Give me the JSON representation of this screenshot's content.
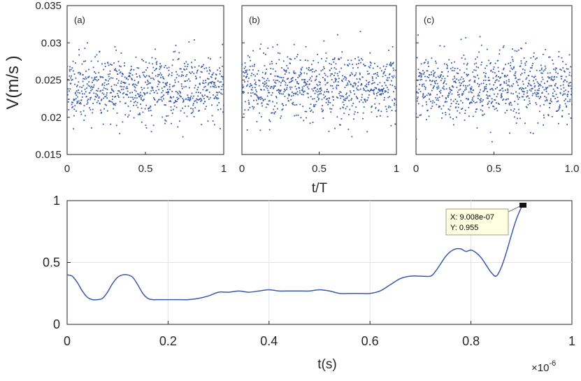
{
  "chart_data": [
    {
      "type": "scatter",
      "panel_label": "(a)",
      "ylabel": "V(m/s )",
      "ylim": [
        0.015,
        0.035
      ],
      "xlim": [
        0,
        1
      ],
      "xticks": [
        "0",
        "0.5",
        "1"
      ],
      "yticks": [
        "0.015",
        "0.02",
        "0.025",
        "0.03",
        "0.035"
      ],
      "points_count": 800,
      "mean": 0.024,
      "std": 0.0022,
      "color": "#3a5aa8"
    },
    {
      "type": "scatter",
      "panel_label": "(b)",
      "xlabel": "t/T",
      "ylim": [
        0.015,
        0.035
      ],
      "xlim": [
        0,
        1
      ],
      "xticks": [
        "0",
        "0.5",
        "1"
      ],
      "points_count": 800,
      "mean": 0.024,
      "std": 0.0022,
      "color": "#3a5aa8"
    },
    {
      "type": "scatter",
      "panel_label": "(c)",
      "ylim": [
        0.015,
        0.035
      ],
      "xlim": [
        0,
        1
      ],
      "xticks": [
        "0",
        "0.5",
        "1.0"
      ],
      "points_count": 800,
      "mean": 0.024,
      "std": 0.0022,
      "color": "#3a5aa8"
    },
    {
      "type": "line",
      "xlabel": "t(s)",
      "x_exponent": "×10",
      "x_exponent_power": "-6",
      "xlim": [
        0,
        1
      ],
      "ylim": [
        0,
        1
      ],
      "grid": true,
      "xticks": [
        "0",
        "0.2",
        "0.4",
        "0.6",
        "0.8",
        "1"
      ],
      "yticks": [
        "0",
        "0.5",
        "1"
      ],
      "color": "#3a5aa8",
      "x": [
        0,
        0.01,
        0.02,
        0.03,
        0.04,
        0.05,
        0.06,
        0.07,
        0.08,
        0.09,
        0.1,
        0.11,
        0.12,
        0.13,
        0.14,
        0.15,
        0.16,
        0.17,
        0.18,
        0.19,
        0.2,
        0.22,
        0.24,
        0.26,
        0.28,
        0.3,
        0.32,
        0.34,
        0.36,
        0.38,
        0.4,
        0.42,
        0.44,
        0.46,
        0.48,
        0.5,
        0.52,
        0.54,
        0.56,
        0.58,
        0.6,
        0.62,
        0.64,
        0.66,
        0.68,
        0.7,
        0.72,
        0.73,
        0.74,
        0.75,
        0.76,
        0.77,
        0.78,
        0.79,
        0.8,
        0.81,
        0.82,
        0.83,
        0.84,
        0.85,
        0.86,
        0.87,
        0.88,
        0.89,
        0.9008
      ],
      "y": [
        0.4,
        0.39,
        0.34,
        0.27,
        0.22,
        0.2,
        0.2,
        0.21,
        0.26,
        0.33,
        0.38,
        0.4,
        0.4,
        0.38,
        0.32,
        0.25,
        0.21,
        0.2,
        0.2,
        0.2,
        0.2,
        0.2,
        0.2,
        0.21,
        0.23,
        0.26,
        0.26,
        0.27,
        0.26,
        0.27,
        0.28,
        0.27,
        0.27,
        0.27,
        0.27,
        0.28,
        0.27,
        0.25,
        0.25,
        0.25,
        0.25,
        0.27,
        0.32,
        0.37,
        0.39,
        0.39,
        0.39,
        0.43,
        0.49,
        0.55,
        0.59,
        0.61,
        0.61,
        0.59,
        0.6,
        0.58,
        0.54,
        0.48,
        0.42,
        0.39,
        0.46,
        0.58,
        0.72,
        0.85,
        0.955
      ]
    }
  ],
  "datatip": {
    "x_text": "X: 9.008e-07",
    "y_text": "Y: 0.955"
  }
}
